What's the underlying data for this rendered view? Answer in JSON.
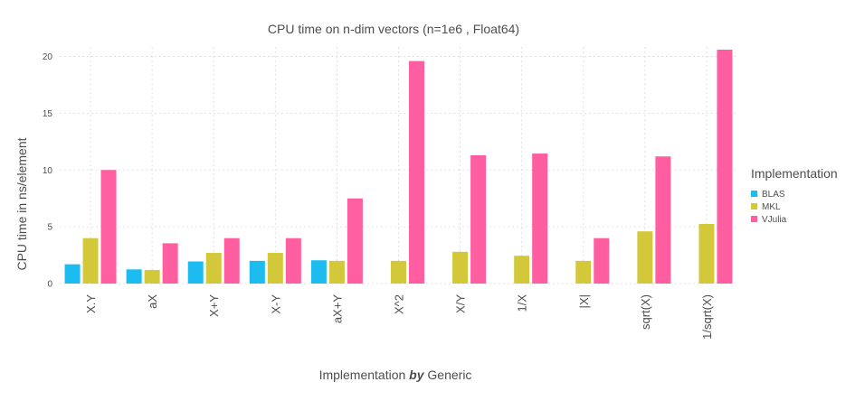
{
  "chart_data": {
    "type": "bar",
    "title": "CPU time on n-dim vectors (n=1e6 , Float64)",
    "xlabel_prefix": "Implementation ",
    "xlabel_bold": "by",
    "xlabel_suffix": " Generic",
    "ylabel": "CPU time in ns/element",
    "ylim": [
      0,
      20.6
    ],
    "yticks": [
      0,
      5,
      10,
      15,
      20
    ],
    "grid": true,
    "legend_position": "right",
    "legend_title": "Implementation",
    "categories": [
      "X.Y",
      "aX",
      "X+Y",
      "X-Y",
      "aX+Y",
      "X^2",
      "X/Y",
      "1/X",
      "|X|",
      "sqrt(X)",
      "1/sqrt(X)"
    ],
    "series": [
      {
        "name": "BLAS",
        "color": "#1cbcf0",
        "values": [
          1.7,
          1.25,
          1.95,
          2.0,
          2.05,
          null,
          null,
          null,
          null,
          null,
          null
        ]
      },
      {
        "name": "MKL",
        "color": "#d2c83a",
        "values": [
          4.0,
          1.2,
          2.7,
          2.7,
          2.0,
          2.0,
          2.8,
          2.45,
          2.0,
          4.6,
          5.25
        ]
      },
      {
        "name": "VJulia",
        "color": "#ff5fa1",
        "values": [
          10.0,
          3.55,
          4.0,
          4.0,
          7.5,
          19.6,
          11.3,
          11.45,
          4.0,
          11.2,
          20.6
        ]
      }
    ]
  }
}
